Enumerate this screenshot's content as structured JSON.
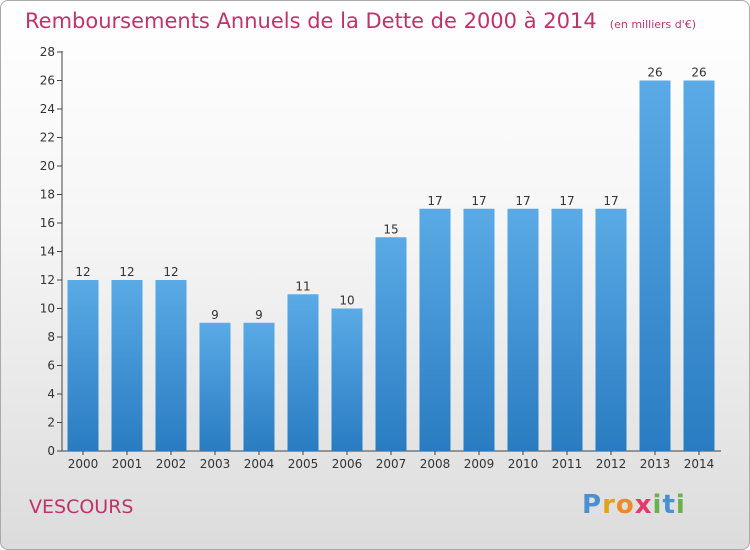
{
  "title": "Remboursements Annuels de la Dette de 2000 à 2014",
  "unit_note": "(en milliers d'€)",
  "commune": "VESCOURS",
  "logo": {
    "text": "Proxiti",
    "letter_colors": [
      "#4a8fd4",
      "#e2a21a",
      "#f08a24",
      "#e23a6e",
      "#6ab04c",
      "#4a8fd4",
      "#6ab04c"
    ]
  },
  "chart_data": {
    "type": "bar",
    "categories": [
      "2000",
      "2001",
      "2002",
      "2003",
      "2004",
      "2005",
      "2006",
      "2007",
      "2008",
      "2009",
      "2010",
      "2011",
      "2012",
      "2013",
      "2014"
    ],
    "values": [
      12,
      12,
      12,
      9,
      9,
      11,
      10,
      15,
      17,
      17,
      17,
      17,
      17,
      26,
      26
    ],
    "ylim": [
      0,
      28
    ],
    "yticks": [
      0,
      2,
      4,
      6,
      8,
      10,
      12,
      14,
      16,
      18,
      20,
      22,
      24,
      26,
      28
    ],
    "grid": false,
    "legend": "none",
    "colors": {
      "bar_light": "#5aaae6",
      "bar_dark": "#2a7cc2",
      "axis": "#444444"
    }
  }
}
